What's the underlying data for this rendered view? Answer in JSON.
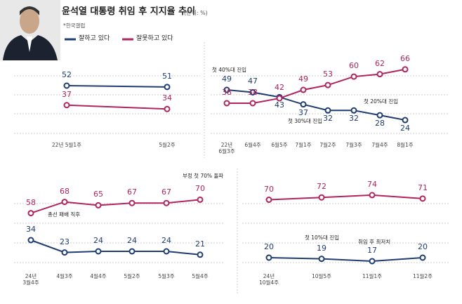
{
  "title": "윤석열 대통령 취임 후 지지율 추이",
  "unit": "(단위: %)",
  "source": "*한국갤럽",
  "chart_data": [
    {
      "type": "line",
      "categories": [
        "22년 5월1주",
        "5월2주"
      ],
      "series": [
        {
          "name": "잘하고 있다",
          "color": "#1f3c73",
          "values": [
            52,
            51
          ]
        },
        {
          "name": "잘못하고 있다",
          "color": "#b0245f",
          "values": [
            37,
            34
          ]
        }
      ]
    },
    {
      "type": "line",
      "categories": [
        "22년\n6월3주",
        "6월4주",
        "6월5주",
        "7월1주",
        "7월2주",
        "7월3주",
        "7월4주",
        "8월1주"
      ],
      "series": [
        {
          "name": "잘하고 있다",
          "color": "#1f3c73",
          "values": [
            49,
            47,
            43,
            37,
            32,
            32,
            28,
            24
          ]
        },
        {
          "name": "잘못하고 있다",
          "color": "#b0245f",
          "values": [
            38,
            38,
            42,
            49,
            53,
            60,
            62,
            66
          ]
        }
      ],
      "annotations": [
        "첫 40%대 진입",
        "첫 30%대 진입",
        "첫 20%대 진입"
      ]
    },
    {
      "type": "line",
      "categories": [
        "24년\n3월4주",
        "4월3주",
        "4월4주",
        "5월2주",
        "5월3주",
        "5월4주"
      ],
      "series": [
        {
          "name": "잘하고 있다",
          "color": "#1f3c73",
          "values": [
            34,
            23,
            24,
            24,
            24,
            21
          ]
        },
        {
          "name": "잘못하고 있다",
          "color": "#b0245f",
          "values": [
            58,
            68,
            65,
            67,
            67,
            70
          ]
        }
      ],
      "annotations": [
        "부정 첫 70% 돌파",
        "총선 패배 직후"
      ]
    },
    {
      "type": "line",
      "categories": [
        "24년\n10월4주",
        "10월5주",
        "11월1주",
        "11월2주"
      ],
      "series": [
        {
          "name": "잘하고 있다",
          "color": "#1f3c73",
          "values": [
            20,
            19,
            17,
            20
          ]
        },
        {
          "name": "잘못하고 있다",
          "color": "#b0245f",
          "values": [
            70,
            72,
            74,
            71
          ]
        }
      ],
      "annotations": [
        "첫 10%대 진입",
        "취임 후 최저치"
      ]
    }
  ]
}
